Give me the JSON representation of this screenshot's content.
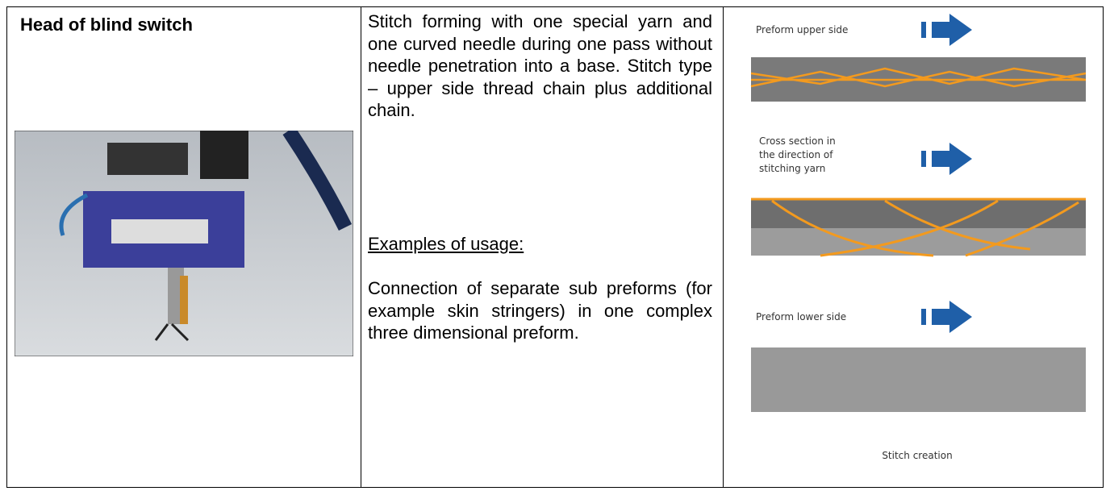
{
  "table": {
    "rows": [
      {
        "title": "Head of blind switch",
        "description": "Stitch forming with one special yarn and one curved needle during one pass without needle penetration into a base. Stitch type – upper side thread chain plus additional chain.",
        "usage_heading": "Examples of usage:",
        "usage_text": "Connection of separate sub preforms (for example skin stringers) in one complex three dimensional preform.",
        "diagram": {
          "upper_label": "Preform upper side",
          "cross_label": [
            "Cross section in",
            "the direction of",
            "stitching yarn"
          ],
          "lower_label": "Preform lower side",
          "caption": "Stitch creation"
        }
      }
    ]
  }
}
